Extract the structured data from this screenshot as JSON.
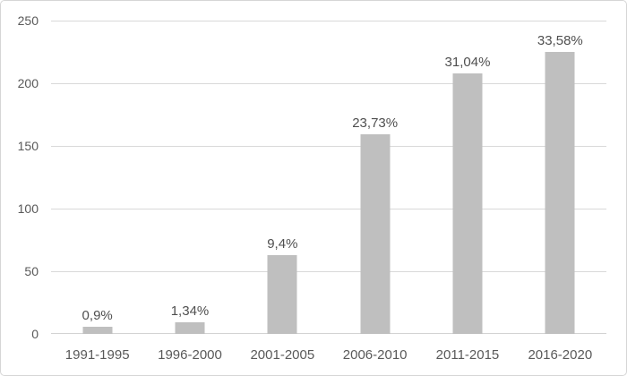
{
  "colors": {
    "background": "#ffffff",
    "border": "#d6d6d6",
    "bar_fill": "#bfbfbf",
    "gridline": "#d9d9d9",
    "axis_text": "#595959",
    "data_label_text": "#4f4f4f"
  },
  "chart_data": {
    "type": "bar",
    "title": "",
    "xlabel": "",
    "ylabel": "",
    "categories": [
      "1991-1995",
      "1996-2000",
      "2001-2005",
      "2006-2010",
      "2011-2015",
      "2016-2020"
    ],
    "values": [
      6,
      9,
      63,
      159,
      208,
      225
    ],
    "data_labels": [
      "0,9%",
      "1,34%",
      "9,4%",
      "23,73%",
      "31,04%",
      "33,58%"
    ],
    "ylim": [
      0,
      250
    ],
    "yticks": [
      0,
      50,
      100,
      150,
      200,
      250
    ],
    "grid": true,
    "legend_position": "none"
  }
}
